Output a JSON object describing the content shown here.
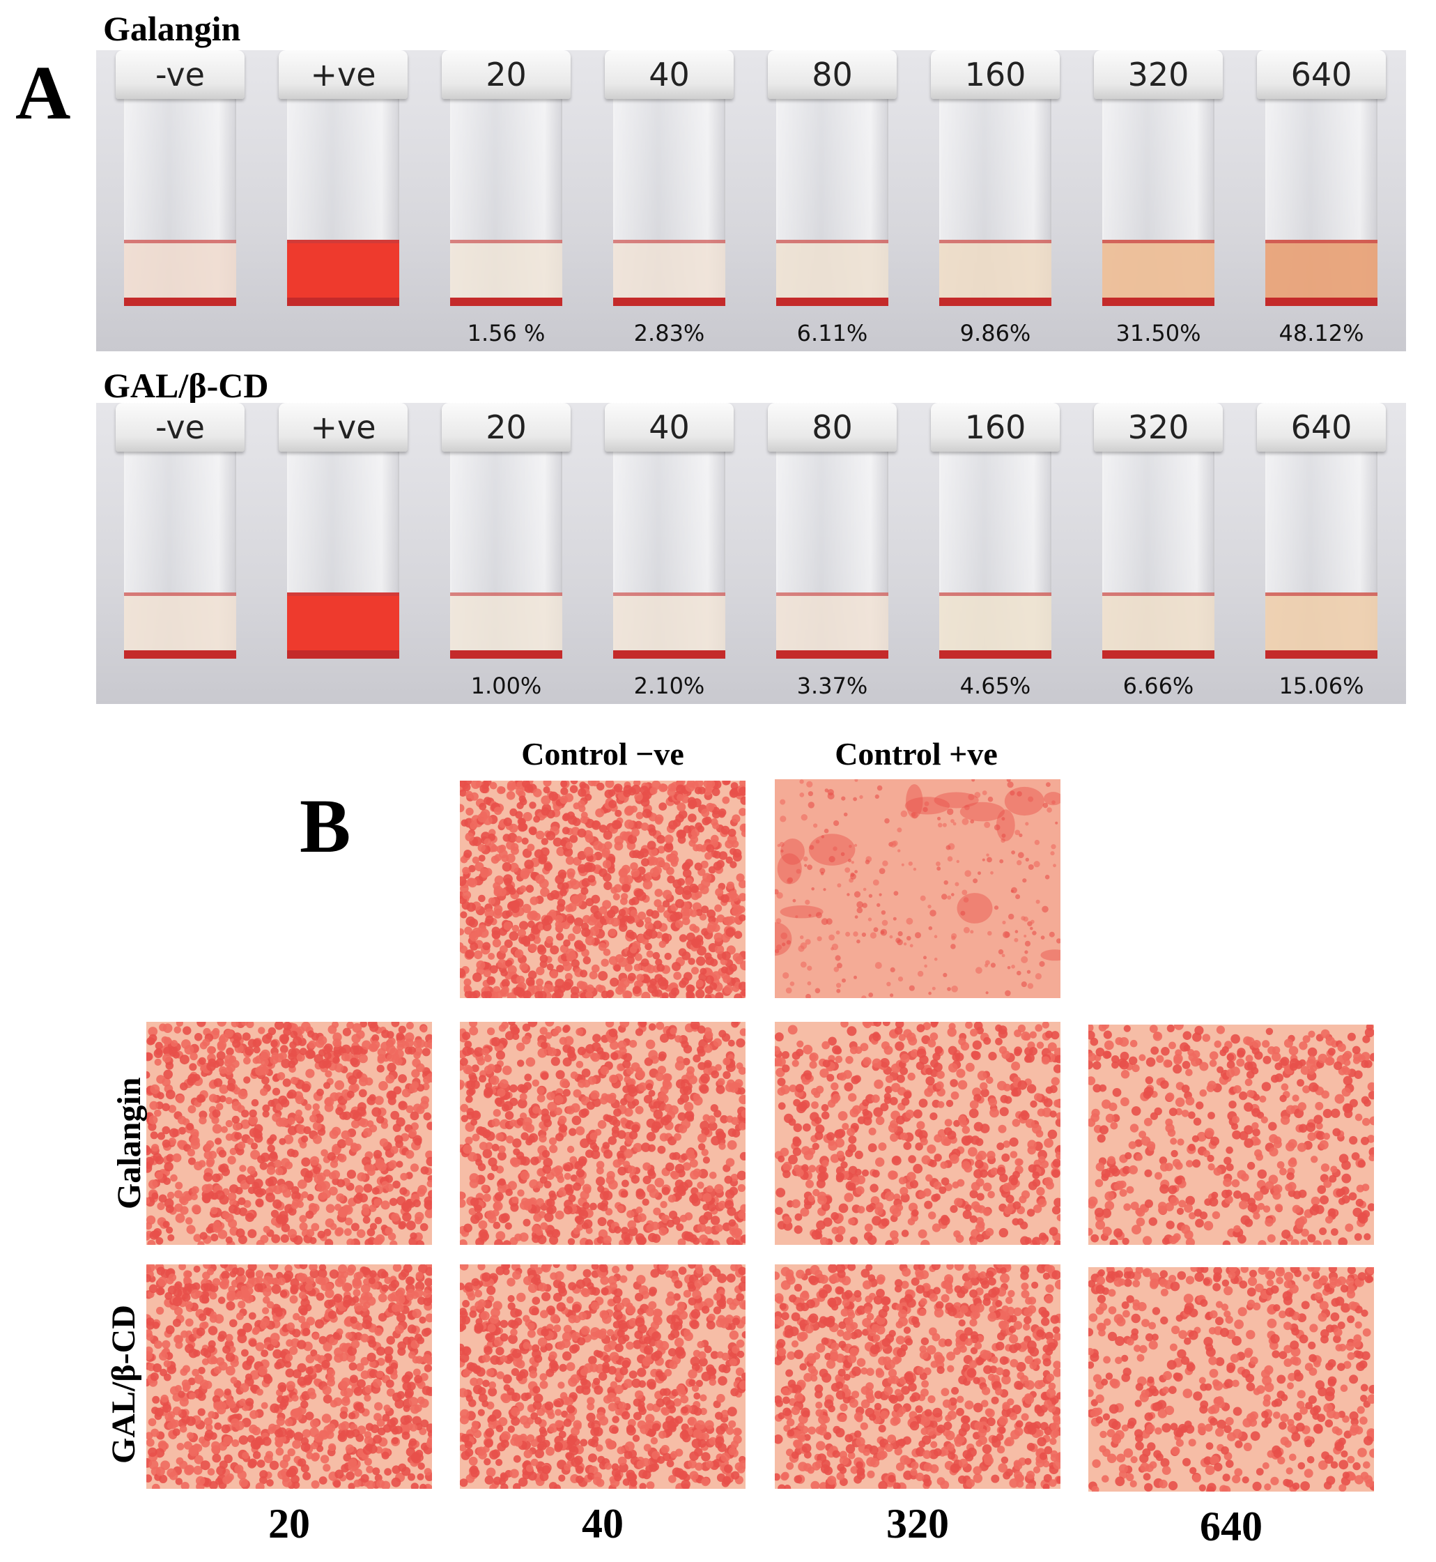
{
  "panel_a": {
    "letter": "A",
    "rows": [
      {
        "title": "Galangin",
        "tubes": [
          {
            "cap": "-ve",
            "pct": "",
            "liquid": "#f1dccf",
            "opacity": 0.85
          },
          {
            "cap": "+ve",
            "pct": "",
            "liquid": "#ee3a2d",
            "opacity": 1.0
          },
          {
            "cap": "20",
            "pct": "1.56 %",
            "liquid": "#f1e6d8",
            "opacity": 0.8
          },
          {
            "cap": "40",
            "pct": "2.83%",
            "liquid": "#f1e3d6",
            "opacity": 0.8
          },
          {
            "cap": "80",
            "pct": "6.11%",
            "liquid": "#efe2d2",
            "opacity": 0.85
          },
          {
            "cap": "160",
            "pct": "9.86%",
            "liquid": "#efdcc5",
            "opacity": 0.85
          },
          {
            "cap": "320",
            "pct": "31.50%",
            "liquid": "#eebf98",
            "opacity": 0.95
          },
          {
            "cap": "640",
            "pct": "48.12%",
            "liquid": "#e9a47a",
            "opacity": 0.95
          }
        ]
      },
      {
        "title": "GAL/β-CD",
        "tubes": [
          {
            "cap": "-ve",
            "pct": "",
            "liquid": "#f1e2d4",
            "opacity": 0.85
          },
          {
            "cap": "+ve",
            "pct": "",
            "liquid": "#ee3a2d",
            "opacity": 1.0
          },
          {
            "cap": "20",
            "pct": "1.00%",
            "liquid": "#f1e6d8",
            "opacity": 0.8
          },
          {
            "cap": "40",
            "pct": "2.10%",
            "liquid": "#f1e4d6",
            "opacity": 0.8
          },
          {
            "cap": "80",
            "pct": "3.37%",
            "liquid": "#f1e2d4",
            "opacity": 0.8
          },
          {
            "cap": "160",
            "pct": "4.65%",
            "liquid": "#efe3cf",
            "opacity": 0.85
          },
          {
            "cap": "320",
            "pct": "6.66%",
            "liquid": "#efdfca",
            "opacity": 0.85
          },
          {
            "cap": "640",
            "pct": "15.06%",
            "liquid": "#efcfad",
            "opacity": 0.9
          }
        ]
      }
    ]
  },
  "panel_b": {
    "letter": "B",
    "control_neg_label": "Control −ve",
    "control_pos_label": "Control +ve",
    "row_labels": [
      "Galangin",
      "GAL/β-CD"
    ],
    "column_labels": [
      "20",
      "40",
      "320",
      "640"
    ]
  },
  "colors": {
    "cell": "#e8504a",
    "cell_light": "#ef6a5f",
    "background_field": "#f6bda6",
    "lysed_field": "#f4ab96"
  }
}
